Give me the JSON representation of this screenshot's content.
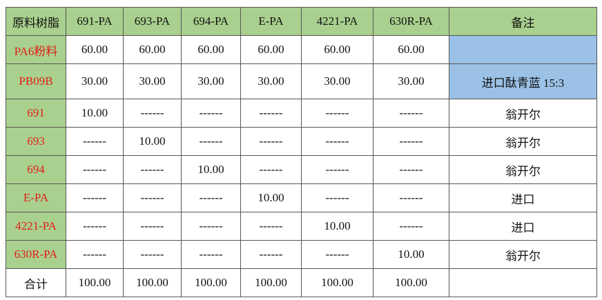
{
  "table": {
    "header": [
      "原料树脂",
      "691-PA",
      "693-PA",
      "694-PA",
      "E-PA",
      "4221-PA",
      "630R-PA",
      "备注"
    ],
    "rows": [
      [
        "PA6粉料",
        "60.00",
        "60.00",
        "60.00",
        "60.00",
        "60.00",
        "60.00",
        null
      ],
      [
        "PB09B",
        "30.00",
        "30.00",
        "30.00",
        "30.00",
        "30.00",
        "30.00",
        "进口酞青蓝 15:3"
      ],
      [
        "691",
        "10.00",
        "------",
        "------",
        "------",
        "------",
        "------",
        "翁开尔"
      ],
      [
        "693",
        "------",
        "10.00",
        "------",
        "------",
        "------",
        "------",
        "翁开尔"
      ],
      [
        "694",
        "------",
        "------",
        "10.00",
        "------",
        "------",
        "------",
        "翁开尔"
      ],
      [
        "E-PA",
        "------",
        "------",
        "------",
        "10.00",
        "------",
        "------",
        "进口"
      ],
      [
        "4221-PA",
        "------",
        "------",
        "------",
        "------",
        "10.00",
        "------",
        "进口"
      ],
      [
        "630R-PA",
        "------",
        "------",
        "------",
        "------",
        "------",
        "10.00",
        "翁开尔"
      ],
      [
        "合计",
        "100.00",
        "100.00",
        "100.00",
        "100.00",
        "100.00",
        "100.00",
        null
      ]
    ]
  }
}
